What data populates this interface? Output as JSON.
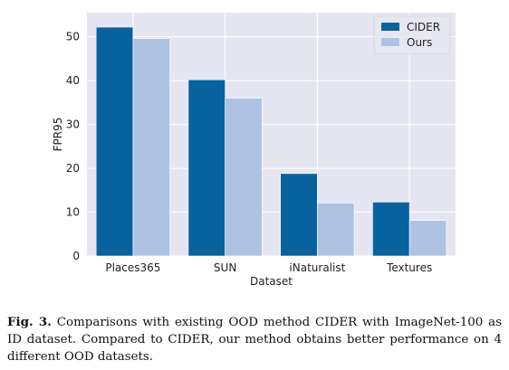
{
  "chart_data": {
    "type": "bar",
    "title": "",
    "xlabel": "Dataset",
    "ylabel": "FPR95",
    "categories": [
      "Places365",
      "SUN",
      "iNaturalist",
      "Textures"
    ],
    "series": [
      {
        "name": "CIDER",
        "values": [
          52.2,
          40.2,
          18.8,
          12.3
        ]
      },
      {
        "name": "Ours",
        "values": [
          49.6,
          36.0,
          12.1,
          8.1
        ]
      }
    ],
    "ylim": [
      0,
      55.5
    ],
    "yticks": [
      0,
      10,
      20,
      30,
      40,
      50
    ],
    "grid": true,
    "legend_position": "top-right",
    "colors": {
      "CIDER": "#08629e",
      "Ours": "#aec3e1",
      "plot_background": "#e6e6f2",
      "grid": "#ffffff"
    }
  },
  "caption": {
    "label": "Fig. 3.",
    "text": "Comparisons with existing OOD method CIDER with ImageNet-100 as ID dataset. Compared to CIDER, our method obtains better performance on 4 different OOD datasets."
  }
}
